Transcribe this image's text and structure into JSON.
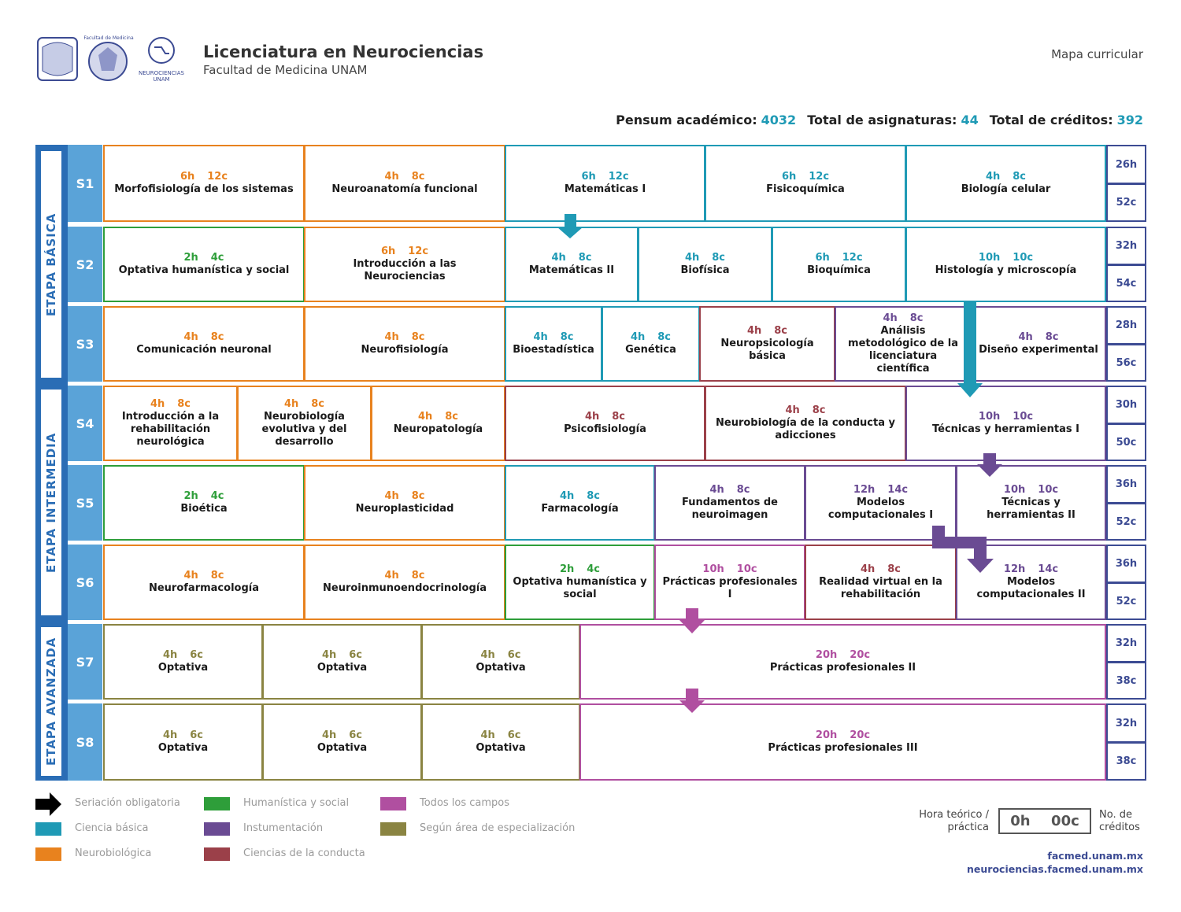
{
  "header": {
    "logo_text_1": "Facultad de Medicina",
    "logo_text_2": "NEUROCIENCIAS",
    "logo_text_3": "UNAM",
    "title": "Licenciatura en Neurociencias",
    "subtitle": "Facultad de Medicina UNAM",
    "doc_label": "Mapa curricular"
  },
  "stats": [
    {
      "label": "Pensum académico:",
      "value": "4032"
    },
    {
      "label": "Total de asignaturas:",
      "value": "44"
    },
    {
      "label": "Total de créditos:",
      "value": "392"
    }
  ],
  "stages": [
    "Etapa básica",
    "Etapa intermedia",
    "Etapa avanzada"
  ],
  "semesters": [
    {
      "label": "S1",
      "total_hours": "26h",
      "total_credits": "52c",
      "courses": [
        {
          "name": "Morfofisiología de los sistemas",
          "hours": "6h",
          "credits": "12c",
          "color": "#e8821e"
        },
        {
          "name": "Neuroanatomía funcional",
          "hours": "4h",
          "credits": "8c",
          "color": "#e8821e"
        },
        {
          "name": "Matemáticas I",
          "hours": "6h",
          "credits": "12c",
          "color": "#1f9ab5"
        },
        {
          "name": "Fisicoquímica",
          "hours": "6h",
          "credits": "12c",
          "color": "#1f9ab5"
        },
        {
          "name": "Biología celular",
          "hours": "4h",
          "credits": "8c",
          "color": "#1f9ab5"
        }
      ]
    },
    {
      "label": "S2",
      "total_hours": "32h",
      "total_credits": "54c",
      "courses": [
        {
          "name": "Optativa humanística y social",
          "hours": "2h",
          "credits": "4c",
          "color": "#2e9e3a"
        },
        {
          "name": "Introducción a las Neurociencias",
          "hours": "6h",
          "credits": "12c",
          "color": "#e8821e"
        },
        {
          "name": "Matemáticas II",
          "hours": "4h",
          "credits": "8c",
          "color": "#1f9ab5"
        },
        {
          "name": "Biofísica",
          "hours": "4h",
          "credits": "8c",
          "color": "#1f9ab5"
        },
        {
          "name": "Bioquímica",
          "hours": "6h",
          "credits": "12c",
          "color": "#1f9ab5"
        },
        {
          "name": "Histología y microscopía",
          "hours": "10h",
          "credits": "10c",
          "color": "#1f9ab5"
        }
      ]
    },
    {
      "label": "S3",
      "total_hours": "28h",
      "total_credits": "56c",
      "courses": [
        {
          "name": "Comunicación neuronal",
          "hours": "4h",
          "credits": "8c",
          "color": "#e8821e"
        },
        {
          "name": "Neurofisiología",
          "hours": "4h",
          "credits": "8c",
          "color": "#e8821e"
        },
        {
          "name": "Bioestadística",
          "hours": "4h",
          "credits": "8c",
          "color": "#1f9ab5"
        },
        {
          "name": "Genética",
          "hours": "4h",
          "credits": "8c",
          "color": "#1f9ab5"
        },
        {
          "name": "Neuropsicología básica",
          "hours": "4h",
          "credits": "8c",
          "color": "#9b4049"
        },
        {
          "name": "Análisis metodológico de la licenciatura científica",
          "hours": "4h",
          "credits": "8c",
          "color": "#6a4b93"
        },
        {
          "name": "Diseño experimental",
          "hours": "4h",
          "credits": "8c",
          "color": "#6a4b93"
        }
      ]
    },
    {
      "label": "S4",
      "total_hours": "30h",
      "total_credits": "50c",
      "courses": [
        {
          "name": "Introducción a la rehabilitación neurológica",
          "hours": "4h",
          "credits": "8c",
          "color": "#e8821e"
        },
        {
          "name": "Neurobiología evolutiva y del desarrollo",
          "hours": "4h",
          "credits": "8c",
          "color": "#e8821e"
        },
        {
          "name": "Neuropatología",
          "hours": "4h",
          "credits": "8c",
          "color": "#e8821e"
        },
        {
          "name": "Psicofisiología",
          "hours": "4h",
          "credits": "8c",
          "color": "#9b4049"
        },
        {
          "name": "Neurobiología de la conducta y adicciones",
          "hours": "4h",
          "credits": "8c",
          "color": "#9b4049"
        },
        {
          "name": "Técnicas y herramientas I",
          "hours": "10h",
          "credits": "10c",
          "color": "#6a4b93"
        }
      ]
    },
    {
      "label": "S5",
      "total_hours": "36h",
      "total_credits": "52c",
      "courses": [
        {
          "name": "Bioética",
          "hours": "2h",
          "credits": "4c",
          "color": "#2e9e3a"
        },
        {
          "name": "Neuroplasticidad",
          "hours": "4h",
          "credits": "8c",
          "color": "#e8821e"
        },
        {
          "name": "Farmacología",
          "hours": "4h",
          "credits": "8c",
          "color": "#1f9ab5"
        },
        {
          "name": "Fundamentos de neuroimagen",
          "hours": "4h",
          "credits": "8c",
          "color": "#6a4b93"
        },
        {
          "name": "Modelos computacionales I",
          "hours": "12h",
          "credits": "14c",
          "color": "#6a4b93"
        },
        {
          "name": "Técnicas y herramientas II",
          "hours": "10h",
          "credits": "10c",
          "color": "#6a4b93"
        }
      ]
    },
    {
      "label": "S6",
      "total_hours": "36h",
      "total_credits": "52c",
      "courses": [
        {
          "name": "Neurofarmacología",
          "hours": "4h",
          "credits": "8c",
          "color": "#e8821e"
        },
        {
          "name": "Neuroinmunoendocrinología",
          "hours": "4h",
          "credits": "8c",
          "color": "#e8821e"
        },
        {
          "name": "Optativa humanística y social",
          "hours": "2h",
          "credits": "4c",
          "color": "#2e9e3a"
        },
        {
          "name": "Prácticas profesionales I",
          "hours": "10h",
          "credits": "10c",
          "color": "#b04fa0"
        },
        {
          "name": "Realidad virtual en la rehabilitación",
          "hours": "4h",
          "credits": "8c",
          "color": "#9b4049"
        },
        {
          "name": "Modelos computacionales II",
          "hours": "12h",
          "credits": "14c",
          "color": "#6a4b93"
        }
      ]
    },
    {
      "label": "S7",
      "total_hours": "32h",
      "total_credits": "38c",
      "courses": [
        {
          "name": "Optativa",
          "hours": "4h",
          "credits": "6c",
          "color": "#8a8442"
        },
        {
          "name": "Optativa",
          "hours": "4h",
          "credits": "6c",
          "color": "#8a8442"
        },
        {
          "name": "Optativa",
          "hours": "4h",
          "credits": "6c",
          "color": "#8a8442"
        },
        {
          "name": "Prácticas profesionales II",
          "hours": "20h",
          "credits": "20c",
          "color": "#b04fa0"
        }
      ]
    },
    {
      "label": "S8",
      "total_hours": "32h",
      "total_credits": "38c",
      "courses": [
        {
          "name": "Optativa",
          "hours": "4h",
          "credits": "6c",
          "color": "#8a8442"
        },
        {
          "name": "Optativa",
          "hours": "4h",
          "credits": "6c",
          "color": "#8a8442"
        },
        {
          "name": "Optativa",
          "hours": "4h",
          "credits": "6c",
          "color": "#8a8442"
        },
        {
          "name": "Prácticas profesionales III",
          "hours": "20h",
          "credits": "20c",
          "color": "#b04fa0"
        }
      ]
    }
  ],
  "legend": [
    {
      "label": "Seriación obligatoria",
      "color": "#000000"
    },
    {
      "label": "Ciencia básica",
      "color": "#1f9ab5"
    },
    {
      "label": "Neurobiológica",
      "color": "#e8821e"
    },
    {
      "label": "Humanística y social",
      "color": "#2e9e3a"
    },
    {
      "label": "Instumentación",
      "color": "#6a4b93"
    },
    {
      "label": "Ciencias de la conducta",
      "color": "#9b4049"
    },
    {
      "label": "Todos los campos",
      "color": "#b04fa0"
    },
    {
      "label": "Según área de especialización",
      "color": "#8a8442"
    }
  ],
  "key": {
    "left_label": "Hora teórico / práctica",
    "hours": "0h",
    "credits": "00c",
    "right_label": "No. de créditos"
  },
  "links": [
    "facmed.unam.mx",
    "neurociencias.facmed.unam.mx"
  ]
}
